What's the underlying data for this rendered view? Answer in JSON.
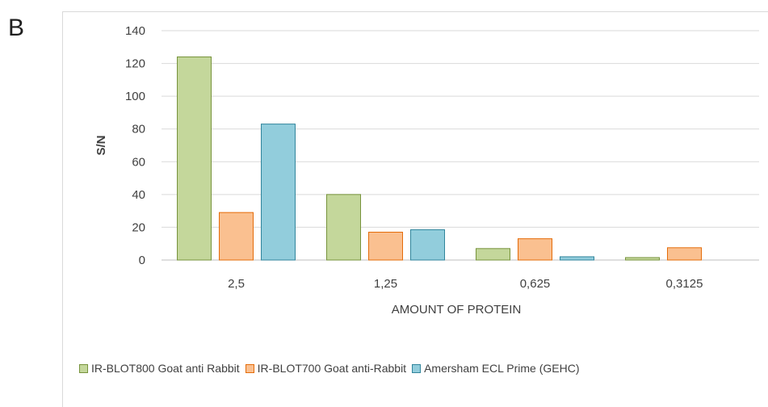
{
  "panel_label": "B",
  "chart_data": {
    "type": "bar",
    "title": "",
    "xlabel": "AMOUNT OF PROTEIN",
    "ylabel": "S/N",
    "ylim": [
      0,
      140
    ],
    "yticks": [
      0,
      20,
      40,
      60,
      80,
      100,
      120,
      140
    ],
    "categories": [
      "2,5",
      "1,25",
      "0,625",
      "0,3125"
    ],
    "grid": true,
    "legend_position": "bottom",
    "series": [
      {
        "name": "IR-BLOT800 Goat anti Rabbit",
        "values": [
          124,
          40,
          7,
          1.5
        ],
        "color": "#c4d79b",
        "stroke": "#77933c"
      },
      {
        "name": "IR-BLOT700 Goat anti-Rabbit",
        "values": [
          29,
          17,
          13,
          7.5
        ],
        "color": "#fac090",
        "stroke": "#e46c0a"
      },
      {
        "name": "Amersham ECL Prime (GEHC)",
        "values": [
          83,
          18.5,
          2,
          0
        ],
        "color": "#92cddc",
        "stroke": "#31859c"
      }
    ]
  }
}
